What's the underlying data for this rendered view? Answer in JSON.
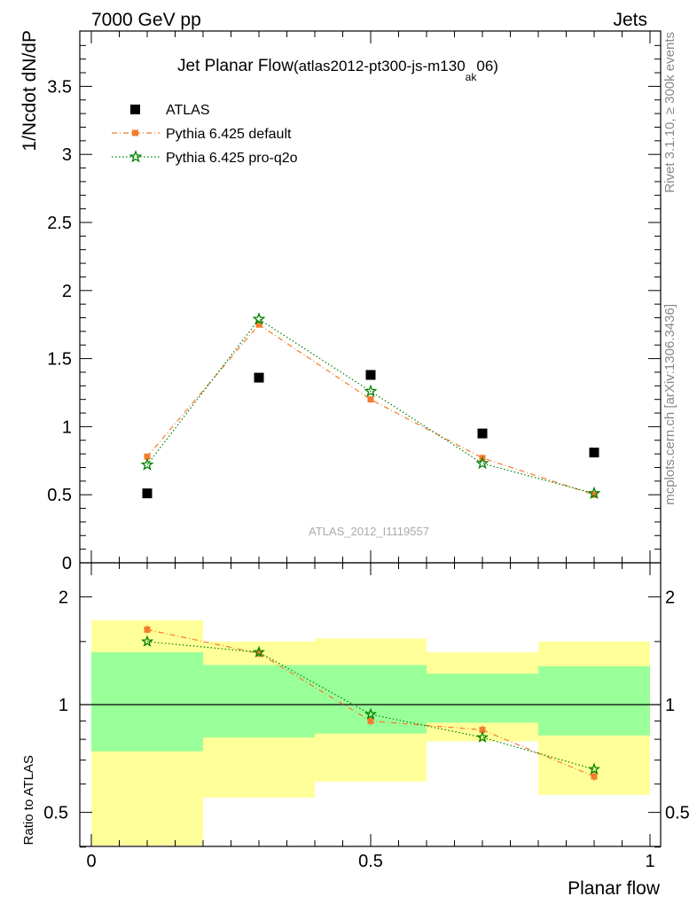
{
  "header": {
    "left": "7000 GeV pp",
    "right": "Jets"
  },
  "title": {
    "main": "Jet Planar Flow",
    "paren_open": "(atlas2012-pt300-js-m130",
    "subscript": "ak",
    "paren_close": "06)"
  },
  "side_labels": {
    "rivet": "Rivet 3.1.10, ≥ 300k events",
    "mcplots": "mcplots.cern.ch [arXiv:1306.3436]"
  },
  "watermark": "ATLAS_2012_I1119557",
  "colors": {
    "data": "#000000",
    "pythia_default": "#f47c2c",
    "pythia_proq2o": "#008000",
    "band_inner": "#99ff99",
    "band_outer": "#ffff99"
  },
  "chart_data": [
    {
      "type": "scatter",
      "ylabel": "1/Ncdot dN/dP",
      "xlim": [
        0,
        1
      ],
      "ylim": [
        0,
        3.9
      ],
      "x": [
        0.1,
        0.3,
        0.5,
        0.7,
        0.9
      ],
      "y_tick_labels": [
        "0",
        "0.5",
        "1",
        "1.5",
        "2",
        "2.5",
        "3",
        "3.5"
      ],
      "legend_position": "top-left",
      "series": [
        {
          "name": "ATLAS",
          "marker": "square",
          "values": [
            0.51,
            1.36,
            1.38,
            0.95,
            0.81
          ]
        },
        {
          "name": "Pythia 6.425 default",
          "marker": "filled-square",
          "line": "dash-dot",
          "values": [
            0.78,
            1.75,
            1.2,
            0.77,
            0.5
          ]
        },
        {
          "name": "Pythia 6.425 pro-q2o",
          "marker": "star",
          "line": "dotted",
          "values": [
            0.72,
            1.79,
            1.26,
            0.73,
            0.51
          ]
        }
      ]
    },
    {
      "type": "line",
      "ylabel": "Ratio to ATLAS",
      "xlabel": "Planar flow",
      "xlim": [
        0,
        1
      ],
      "ylim": [
        0.35,
        2.3
      ],
      "x_tick_labels": [
        "0",
        "0.5",
        "1"
      ],
      "y_tick_labels": [
        "0.5",
        "1",
        "2"
      ],
      "bins": [
        [
          0,
          0.2
        ],
        [
          0.2,
          0.4
        ],
        [
          0.4,
          0.6
        ],
        [
          0.6,
          0.8
        ],
        [
          0.8,
          1.0
        ]
      ],
      "band_inner": [
        [
          0.74,
          1.4
        ],
        [
          0.81,
          1.29
        ],
        [
          0.83,
          1.29
        ],
        [
          0.89,
          1.22
        ],
        [
          0.82,
          1.28
        ]
      ],
      "band_outer": [
        [
          0.3,
          1.72
        ],
        [
          0.55,
          1.5
        ],
        [
          0.61,
          1.53
        ],
        [
          0.79,
          1.4
        ],
        [
          0.56,
          1.5
        ]
      ],
      "x": [
        0.1,
        0.3,
        0.5,
        0.7,
        0.9
      ],
      "series": [
        {
          "name": "Pythia 6.425 default",
          "values": [
            1.62,
            1.39,
            0.9,
            0.85,
            0.63
          ]
        },
        {
          "name": "Pythia 6.425 pro-q2o",
          "values": [
            1.5,
            1.4,
            0.94,
            0.81,
            0.66
          ]
        }
      ]
    }
  ]
}
